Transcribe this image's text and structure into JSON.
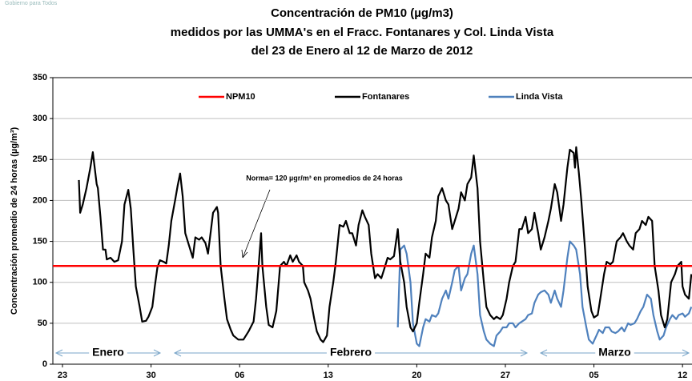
{
  "chart_data": {
    "type": "line",
    "logo_text": "Gobierno para Todos",
    "title": [
      "Concentración de PM10 (µg/m3)",
      "medidos por las UMMA's en el Fracc. Fontanares y Col. Linda Vista",
      "del 23 de Enero al 12 de Marzo de 2012"
    ],
    "y_label": "Concentración promedio de 24 horas (µg/m³)",
    "annotation": "Norma= 120 µgr/m³ en promedios de 24 horas",
    "month_labels": [
      "Enero",
      "Febrero",
      "Marzo"
    ],
    "xlim": [
      -0.76,
      49.75
    ],
    "ylim": [
      0,
      350
    ],
    "yticks": [
      0,
      50,
      100,
      150,
      200,
      250,
      300,
      350
    ],
    "xticks": [
      {
        "value": 0,
        "label": "23"
      },
      {
        "value": 7,
        "label": "30"
      },
      {
        "value": 14,
        "label": "06"
      },
      {
        "value": 21,
        "label": "13"
      },
      {
        "value": 28,
        "label": "20"
      },
      {
        "value": 35,
        "label": "27"
      },
      {
        "value": 42,
        "label": "05"
      },
      {
        "value": 49,
        "label": "12"
      }
    ],
    "grid": true,
    "legend": "top",
    "series": [
      {
        "name": "NPM10",
        "color": "#ff0000",
        "x": [
          -0.76,
          49.75
        ],
        "values": [
          120,
          120
        ]
      },
      {
        "name": "Fontanares",
        "color": "#000000",
        "x": [
          1.3,
          1.4,
          1.6,
          1.9,
          2.2,
          2.4,
          2.7,
          2.8,
          3.0,
          3.2,
          3.4,
          3.5,
          3.8,
          4.1,
          4.4,
          4.7,
          4.9,
          5.2,
          5.4,
          5.6,
          5.8,
          6.1,
          6.3,
          6.6,
          6.8,
          7.1,
          7.3,
          7.5,
          7.7,
          8.0,
          8.2,
          8.4,
          8.6,
          8.9,
          9.1,
          9.3,
          9.5,
          9.7,
          10.0,
          10.3,
          10.5,
          10.8,
          11.0,
          11.3,
          11.5,
          11.7,
          11.9,
          12.2,
          12.3,
          12.5,
          12.8,
          13.0,
          13.3,
          13.5,
          13.9,
          14.3,
          14.7,
          15.1,
          15.3,
          15.5,
          15.7,
          15.8,
          16.1,
          16.3,
          16.6,
          16.9,
          17.2,
          17.5,
          17.7,
          18.0,
          18.2,
          18.5,
          18.7,
          19.0,
          19.1,
          19.4,
          19.6,
          19.9,
          20.1,
          20.4,
          20.6,
          20.9,
          21.1,
          21.4,
          21.6,
          21.9,
          22.2,
          22.4,
          22.7,
          22.9,
          23.2,
          23.4,
          23.7,
          23.9,
          24.2,
          24.4,
          24.7,
          24.9,
          25.2,
          25.4,
          25.7,
          25.9,
          26.2,
          26.5,
          26.7,
          27.0,
          27.2,
          27.5,
          27.7,
          28.0,
          28.2,
          28.5,
          28.7,
          29.0,
          29.2,
          29.5,
          29.7,
          30.0,
          30.3,
          30.5,
          30.8,
          31.0,
          31.3,
          31.5,
          31.8,
          32.0,
          32.3,
          32.5,
          32.8,
          33.0,
          33.3,
          33.5,
          33.8,
          34.1,
          34.3,
          34.6,
          34.8,
          35.1,
          35.3,
          35.6,
          35.8,
          36.1,
          36.3,
          36.6,
          36.8,
          37.1,
          37.3,
          37.6,
          37.8,
          38.1,
          38.4,
          38.6,
          38.9,
          39.1,
          39.4,
          39.6,
          39.9,
          40.1,
          40.4,
          40.5,
          40.6,
          40.8,
          41.0,
          41.3,
          41.5,
          41.8,
          42.0,
          42.3,
          42.5,
          42.8,
          43.0,
          43.3,
          43.5,
          43.8,
          44.1,
          44.3,
          44.6,
          44.8,
          45.1,
          45.3,
          45.6,
          45.8,
          46.1,
          46.3,
          46.6,
          46.8,
          47.1,
          47.3,
          47.6,
          47.8,
          48.1,
          48.4,
          48.6,
          48.9,
          49.0,
          49.2,
          49.5,
          49.7
        ],
        "values": [
          225,
          185,
          195,
          215,
          240,
          259,
          220,
          215,
          180,
          140,
          140,
          128,
          130,
          125,
          127,
          150,
          195,
          213,
          190,
          140,
          95,
          70,
          52,
          53,
          58,
          70,
          95,
          118,
          127,
          125,
          123,
          145,
          175,
          200,
          218,
          233,
          205,
          160,
          145,
          130,
          155,
          152,
          155,
          148,
          135,
          160,
          185,
          192,
          185,
          120,
          80,
          55,
          42,
          35,
          30,
          30,
          40,
          52,
          80,
          120,
          160,
          120,
          70,
          48,
          45,
          65,
          120,
          125,
          120,
          133,
          125,
          133,
          125,
          120,
          100,
          90,
          80,
          55,
          40,
          30,
          27,
          35,
          70,
          100,
          125,
          170,
          168,
          175,
          160,
          160,
          145,
          170,
          188,
          180,
          170,
          135,
          105,
          110,
          105,
          115,
          130,
          128,
          132,
          165,
          125,
          100,
          70,
          45,
          40,
          50,
          75,
          110,
          135,
          130,
          155,
          175,
          205,
          215,
          200,
          195,
          165,
          175,
          190,
          210,
          200,
          220,
          228,
          255,
          215,
          150,
          100,
          70,
          60,
          55,
          58,
          55,
          60,
          80,
          100,
          120,
          125,
          165,
          165,
          180,
          160,
          165,
          185,
          160,
          140,
          155,
          175,
          190,
          220,
          210,
          175,
          195,
          240,
          262,
          258,
          240,
          265,
          235,
          200,
          140,
          95,
          65,
          57,
          60,
          80,
          110,
          125,
          122,
          125,
          150,
          155,
          160,
          150,
          145,
          140,
          160,
          165,
          175,
          170,
          180,
          175,
          120,
          90,
          60,
          45,
          55,
          100,
          110,
          120,
          125,
          95,
          85,
          80,
          110
        ]
      },
      {
        "name": "Linda Vista",
        "color": "#4f81bd",
        "x": [
          26.5,
          26.7,
          27.0,
          27.2,
          27.5,
          27.7,
          28.0,
          28.2,
          28.5,
          28.7,
          29.0,
          29.2,
          29.5,
          29.7,
          30.0,
          30.3,
          30.5,
          30.8,
          31.0,
          31.3,
          31.5,
          31.8,
          32.0,
          32.3,
          32.5,
          32.8,
          33.0,
          33.3,
          33.5,
          33.8,
          34.1,
          34.3,
          34.6,
          34.8,
          35.1,
          35.3,
          35.6,
          35.8,
          36.1,
          36.3,
          36.6,
          36.8,
          37.1,
          37.3,
          37.6,
          37.8,
          38.1,
          38.4,
          38.6,
          38.9,
          39.1,
          39.4,
          39.6,
          39.9,
          40.1,
          40.4,
          40.6,
          40.9,
          41.1,
          41.4,
          41.6,
          41.9,
          42.2,
          42.4,
          42.7,
          42.9,
          43.2,
          43.4,
          43.7,
          43.9,
          44.2,
          44.4,
          44.7,
          44.9,
          45.2,
          45.4,
          45.7,
          45.9,
          46.2,
          46.5,
          46.7,
          47.0,
          47.2,
          47.5,
          47.7,
          48.0,
          48.2,
          48.5,
          48.7,
          49.0,
          49.2,
          49.5,
          49.7
        ],
        "values": [
          45,
          140,
          145,
          135,
          100,
          50,
          25,
          22,
          45,
          55,
          52,
          60,
          58,
          62,
          80,
          90,
          80,
          100,
          115,
          120,
          90,
          105,
          110,
          135,
          145,
          110,
          60,
          40,
          30,
          25,
          22,
          35,
          40,
          45,
          45,
          50,
          50,
          45,
          50,
          52,
          55,
          60,
          62,
          75,
          85,
          88,
          90,
          85,
          75,
          90,
          80,
          70,
          90,
          130,
          150,
          145,
          140,
          110,
          70,
          45,
          30,
          25,
          35,
          42,
          38,
          45,
          45,
          40,
          38,
          40,
          45,
          40,
          50,
          48,
          50,
          55,
          65,
          70,
          85,
          80,
          60,
          40,
          30,
          35,
          45,
          55,
          60,
          55,
          60,
          62,
          58,
          62,
          70
        ]
      }
    ]
  }
}
